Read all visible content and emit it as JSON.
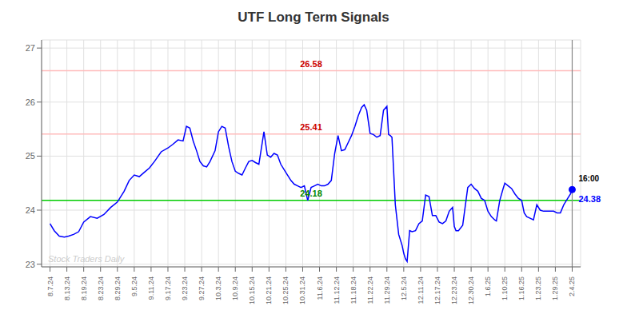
{
  "chart_data": {
    "type": "line",
    "title": "UTF Long Term Signals",
    "color": "#0000ff",
    "grid": true,
    "xlim": [
      -0.5,
      31.5
    ],
    "xticks": [
      {
        "value": 0,
        "label": "8.7.24"
      },
      {
        "value": 1,
        "label": "8.13.24"
      },
      {
        "value": 2,
        "label": "8.19.24"
      },
      {
        "value": 3,
        "label": "8.23.24"
      },
      {
        "value": 4,
        "label": "8.29.24"
      },
      {
        "value": 5,
        "label": "9.5.24"
      },
      {
        "value": 6,
        "label": "9.11.24"
      },
      {
        "value": 7,
        "label": "9.17.24"
      },
      {
        "value": 8,
        "label": "9.23.24"
      },
      {
        "value": 9,
        "label": "9.27.24"
      },
      {
        "value": 10,
        "label": "10.3.24"
      },
      {
        "value": 11,
        "label": "10.9.24"
      },
      {
        "value": 12,
        "label": "10.15.24"
      },
      {
        "value": 13,
        "label": "10.21.24"
      },
      {
        "value": 14,
        "label": "10.25.24"
      },
      {
        "value": 15,
        "label": "10.31.24"
      },
      {
        "value": 16,
        "label": "11.6.24"
      },
      {
        "value": 17,
        "label": "11.12.24"
      },
      {
        "value": 18,
        "label": "11.18.24"
      },
      {
        "value": 19,
        "label": "11.22.24"
      },
      {
        "value": 20,
        "label": "11.29.24"
      },
      {
        "value": 21,
        "label": "12.5.24"
      },
      {
        "value": 22,
        "label": "12.11.24"
      },
      {
        "value": 23,
        "label": "12.17.24"
      },
      {
        "value": 24,
        "label": "12.23.24"
      },
      {
        "value": 25,
        "label": "12.30.24"
      },
      {
        "value": 26,
        "label": "1.6.25"
      },
      {
        "value": 27,
        "label": "1.10.25"
      },
      {
        "value": 28,
        "label": "1.16.25"
      },
      {
        "value": 29,
        "label": "1.23.25"
      },
      {
        "value": 30,
        "label": "1.29.25"
      },
      {
        "value": 31,
        "label": "2.4.25"
      }
    ],
    "ylim": [
      22.95,
      27.15
    ],
    "yticks": [
      23,
      24,
      25,
      26,
      27
    ],
    "x": [
      0.0,
      0.25,
      0.55,
      0.85,
      1.1,
      1.4,
      1.7,
      2.0,
      2.4,
      2.8,
      3.2,
      3.6,
      4.0,
      4.4,
      4.7,
      5.0,
      5.3,
      5.6,
      5.9,
      6.2,
      6.6,
      7.0,
      7.3,
      7.6,
      7.9,
      8.1,
      8.3,
      8.5,
      8.7,
      8.9,
      9.1,
      9.3,
      9.5,
      9.8,
      10.0,
      10.2,
      10.4,
      10.6,
      10.8,
      11.0,
      11.2,
      11.4,
      11.6,
      11.8,
      12.0,
      12.2,
      12.4,
      12.7,
      12.9,
      13.1,
      13.3,
      13.5,
      13.7,
      13.9,
      14.1,
      14.3,
      14.5,
      14.7,
      14.9,
      15.1,
      15.3,
      15.5,
      15.7,
      15.9,
      16.1,
      16.3,
      16.5,
      16.7,
      16.9,
      17.1,
      17.3,
      17.5,
      17.7,
      17.9,
      18.1,
      18.3,
      18.5,
      18.65,
      18.8,
      19.0,
      19.2,
      19.4,
      19.6,
      19.8,
      20.0,
      20.1,
      20.2,
      20.3,
      20.5,
      20.7,
      20.9,
      21.0,
      21.1,
      21.2,
      21.35,
      21.5,
      21.7,
      21.9,
      22.1,
      22.3,
      22.5,
      22.7,
      22.9,
      23.1,
      23.3,
      23.5,
      23.7,
      23.9,
      24.0,
      24.1,
      24.25,
      24.5,
      24.8,
      25.0,
      25.2,
      25.4,
      25.6,
      25.8,
      26.0,
      26.2,
      26.4,
      26.5,
      26.7,
      26.9,
      27.0,
      27.2,
      27.4,
      27.6,
      27.8,
      28.0,
      28.15,
      28.3,
      28.5,
      28.7,
      28.9,
      29.1,
      29.3,
      29.5,
      29.7,
      29.9,
      30.1,
      30.3,
      30.5,
      30.7,
      30.9,
      31.0
    ],
    "values": [
      23.75,
      23.62,
      23.52,
      23.5,
      23.52,
      23.55,
      23.6,
      23.78,
      23.88,
      23.85,
      23.92,
      24.05,
      24.15,
      24.35,
      24.55,
      24.65,
      24.62,
      24.7,
      24.78,
      24.9,
      25.08,
      25.15,
      25.22,
      25.3,
      25.28,
      25.55,
      25.52,
      25.28,
      25.1,
      24.9,
      24.82,
      24.8,
      24.9,
      25.1,
      25.45,
      25.55,
      25.52,
      25.18,
      24.9,
      24.72,
      24.68,
      24.65,
      24.78,
      24.9,
      24.92,
      24.88,
      24.85,
      25.45,
      25.02,
      24.98,
      25.05,
      25.02,
      24.85,
      24.75,
      24.65,
      24.55,
      24.48,
      24.45,
      24.42,
      24.45,
      24.18,
      24.42,
      24.45,
      24.48,
      24.45,
      24.45,
      24.48,
      24.55,
      25.05,
      25.38,
      25.1,
      25.12,
      25.25,
      25.38,
      25.55,
      25.75,
      25.9,
      25.95,
      25.85,
      25.42,
      25.4,
      25.35,
      25.38,
      25.85,
      25.92,
      25.4,
      25.38,
      25.35,
      24.1,
      23.55,
      23.35,
      23.2,
      23.1,
      23.05,
      23.62,
      23.6,
      23.62,
      23.75,
      23.8,
      24.28,
      24.25,
      23.9,
      23.9,
      23.78,
      23.75,
      23.8,
      23.98,
      24.05,
      23.7,
      23.62,
      23.62,
      23.72,
      24.42,
      24.48,
      24.4,
      24.35,
      24.22,
      24.18,
      23.98,
      23.88,
      23.82,
      23.8,
      24.18,
      24.4,
      24.5,
      24.45,
      24.4,
      24.3,
      24.22,
      24.18,
      23.95,
      23.88,
      23.85,
      23.82,
      24.1,
      24.0,
      23.98,
      23.98,
      23.98,
      23.98,
      23.95,
      23.95,
      24.1,
      24.2,
      24.3,
      24.38
    ],
    "reference_lines": [
      {
        "y": 26.58,
        "label": "26.58",
        "color": "#ffbbbb",
        "label_color": "#cc0000"
      },
      {
        "y": 25.41,
        "label": "25.41",
        "color": "#ffbbbb",
        "label_color": "#cc0000"
      },
      {
        "y": 24.18,
        "label": "24.18",
        "color": "#00cc00",
        "label_color": "#008800"
      }
    ],
    "last_point": {
      "x": 31.0,
      "y": 24.38,
      "time_label": "16:00",
      "time_label_color": "#000000",
      "value_label": "24.38",
      "value_label_color": "#0000ff",
      "vline_color": "#888888"
    },
    "watermark": {
      "text": "Stock Traders Daily",
      "color": "#cccccc"
    }
  }
}
